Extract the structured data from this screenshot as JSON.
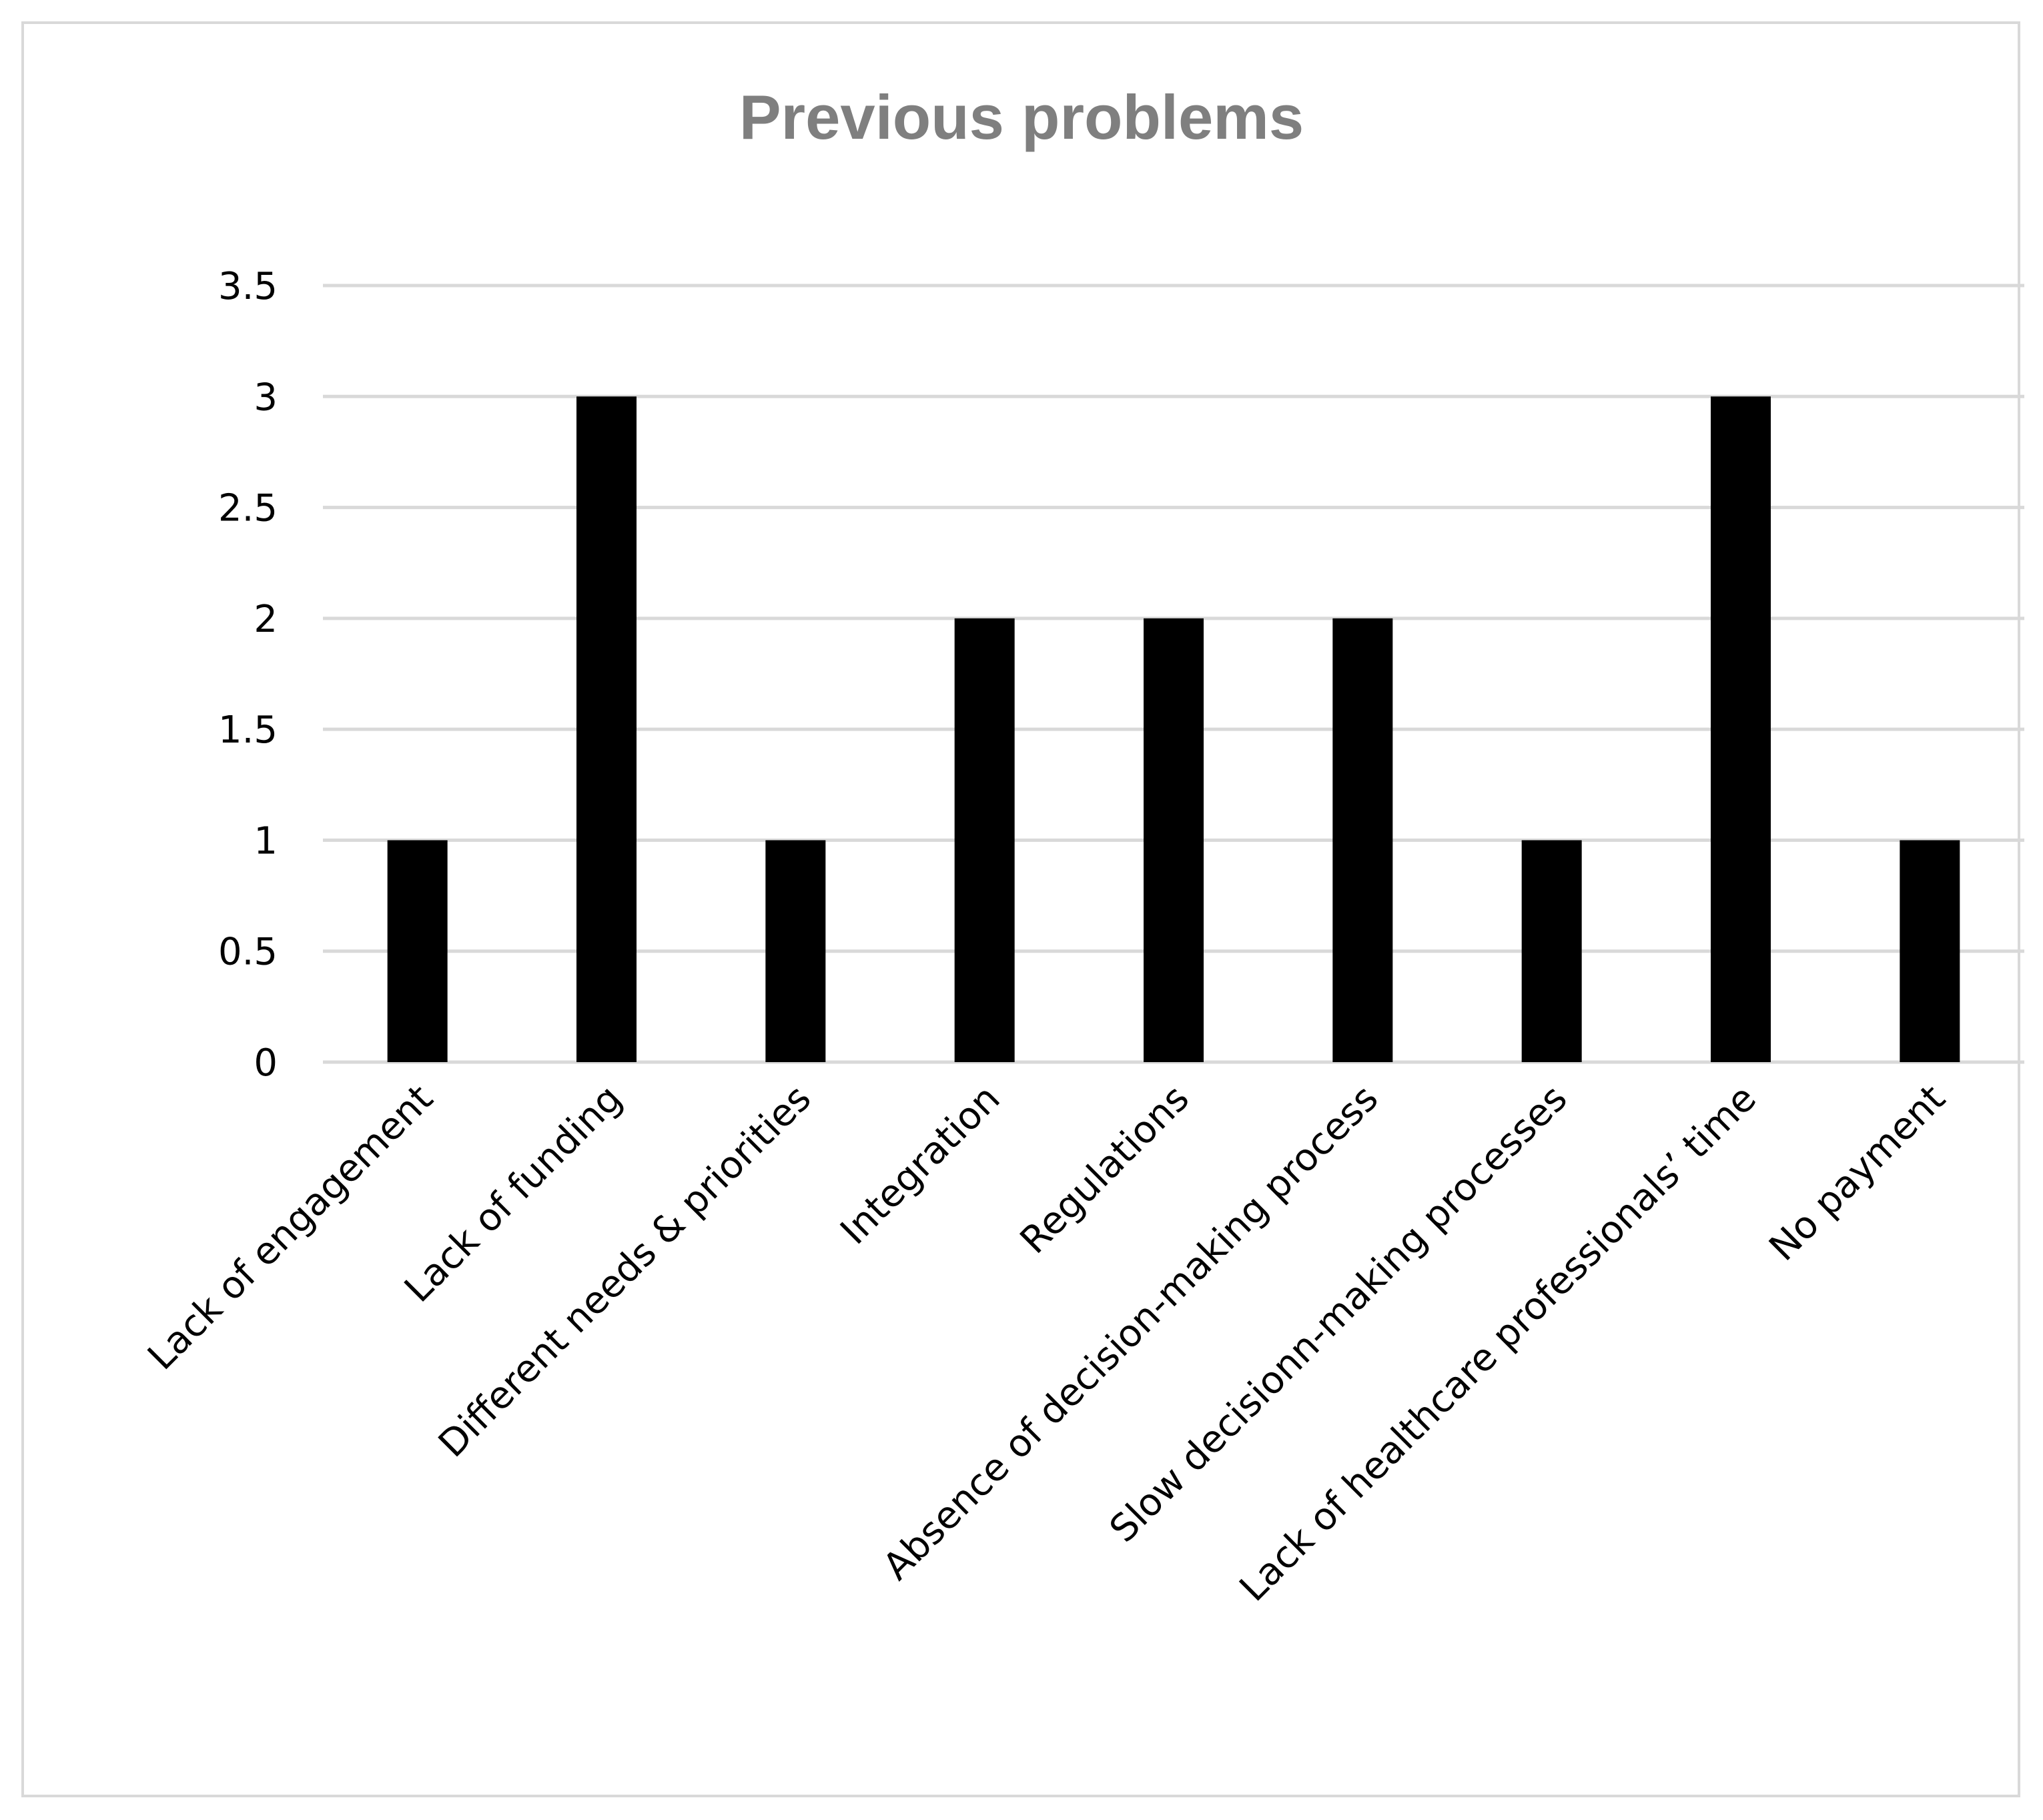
{
  "chart_data": {
    "type": "bar",
    "title": "Previous problems",
    "categories": [
      "Lack of engagement",
      "Lack of funding",
      "Different needs & priorities",
      "Integration",
      "Regulations",
      "Absence of decision-making process",
      "Slow decisionn-making processes",
      "Lack of healthcare professionals’ time",
      "No payment"
    ],
    "values": [
      1,
      3,
      1,
      2,
      2,
      2,
      1,
      3,
      1
    ],
    "ylim": [
      0,
      3.5
    ],
    "yticks": [
      "0",
      "0.5",
      "1",
      "1.5",
      "2",
      "2.5",
      "3",
      "3.5"
    ],
    "grid": true,
    "legend": "none",
    "bar_color": "#000000",
    "grid_color": "#d9d9d9",
    "title_color": "#7f7f7f"
  }
}
